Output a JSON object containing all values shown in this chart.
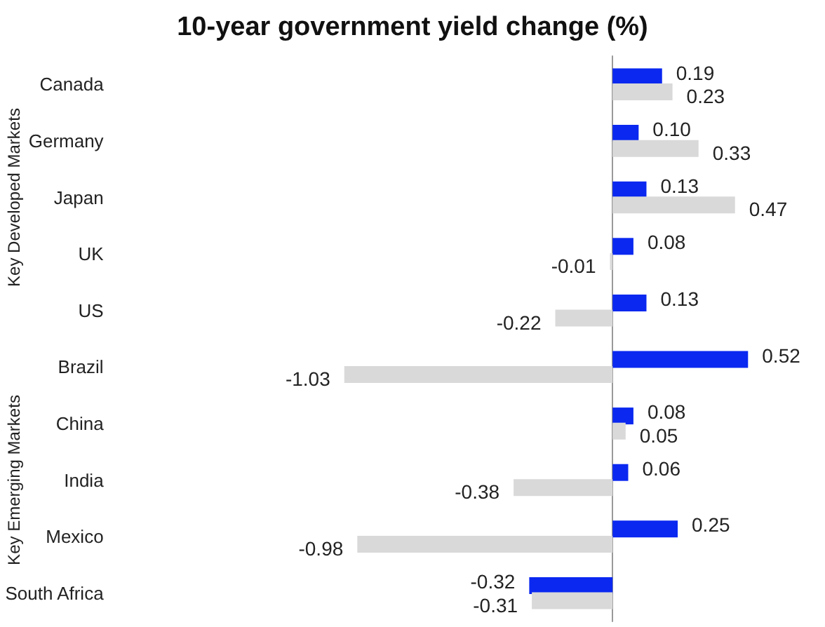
{
  "chart_data": {
    "type": "bar",
    "orientation": "horizontal",
    "title": "10-year government yield change (%)",
    "categories": [
      "Canada",
      "Germany",
      "Japan",
      "UK",
      "US",
      "Brazil",
      "China",
      "India",
      "Mexico",
      "South Africa"
    ],
    "series": [
      {
        "color": "#0a28f0",
        "values": [
          0.19,
          0.1,
          0.13,
          0.08,
          0.13,
          0.52,
          0.08,
          0.06,
          0.25,
          -0.32
        ],
        "value_labels": [
          "0.19",
          "0.10",
          "0.13",
          "0.08",
          "0.13",
          "0.52",
          "0.08",
          "0.06",
          "0.25",
          "-0.32"
        ]
      },
      {
        "color": "#d9d9d9",
        "values": [
          0.23,
          0.33,
          0.47,
          -0.01,
          -0.22,
          -1.03,
          0.05,
          -0.38,
          -0.98,
          -0.31
        ],
        "value_labels": [
          "0.23",
          "0.33",
          "0.47",
          "-0.01",
          "-0.22",
          "-1.03",
          "0.05",
          "-0.38",
          "-0.98",
          "-0.31"
        ]
      }
    ],
    "grid": false,
    "annotations": [
      "Key Developed Markets",
      "Key Emerging Markets"
    ]
  }
}
